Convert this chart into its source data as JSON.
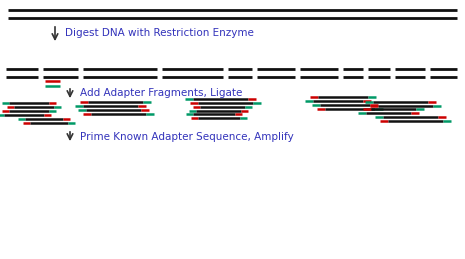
{
  "bg_color": "#ffffff",
  "text_color": "#3333bb",
  "arrow_color": "#333333",
  "dna_color": "#111111",
  "red_color": "#cc0000",
  "green_color": "#009966",
  "step1_label": "Digest DNA with Restriction Enzyme",
  "step2_label": "Add Adapter Fragments, Ligate",
  "step3_label": "Prime Known Adapter Sequence, Amplify",
  "fig_width": 4.65,
  "fig_height": 2.59,
  "dpi": 100
}
